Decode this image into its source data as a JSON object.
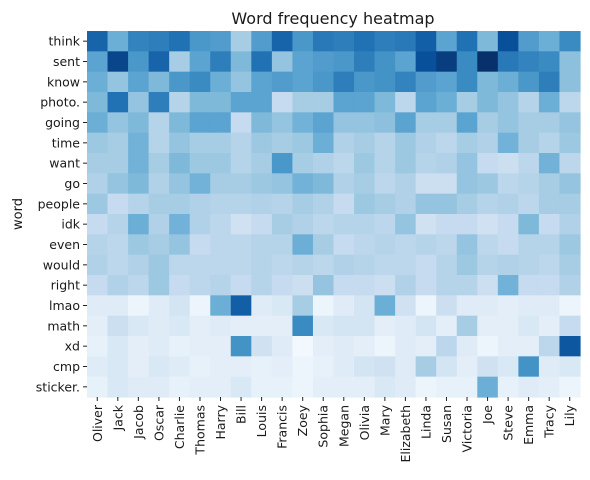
{
  "chart_data": {
    "type": "heatmap",
    "title": "Word frequency heatmap",
    "xlabel": "",
    "ylabel": "word",
    "grid": false,
    "legend": "none",
    "colormap": "Blues",
    "color_low": "#f7fbff",
    "color_high": "#08306b",
    "x": [
      "Oliver",
      "Jack",
      "Jacob",
      "Oscar",
      "Charlie",
      "Thomas",
      "Harry",
      "Bill",
      "Louis",
      "Francis",
      "Zoey",
      "Sophia",
      "Megan",
      "Olivia",
      "Mary",
      "Elizabeth",
      "Linda",
      "Susan",
      "Victoria",
      "Joe",
      "Steve",
      "Emma",
      "Tracy",
      "Lily"
    ],
    "y": [
      "think",
      "sent",
      "know",
      "photo.",
      "going",
      "time",
      "want",
      "go",
      "people",
      "idk",
      "even",
      "would",
      "right",
      "lmao",
      "math",
      "xd",
      "cmp",
      "sticker."
    ],
    "values": [
      [
        0.8,
        0.5,
        0.68,
        0.7,
        0.75,
        0.6,
        0.58,
        0.35,
        0.58,
        0.8,
        0.6,
        0.72,
        0.7,
        0.75,
        0.7,
        0.72,
        0.82,
        0.55,
        0.75,
        0.45,
        0.88,
        0.58,
        0.5,
        0.65
      ],
      [
        0.55,
        0.92,
        0.6,
        0.8,
        0.35,
        0.55,
        0.7,
        0.45,
        0.75,
        0.4,
        0.55,
        0.58,
        0.6,
        0.7,
        0.62,
        0.55,
        0.88,
        0.95,
        0.65,
        1.0,
        0.72,
        0.68,
        0.65,
        0.42
      ],
      [
        0.5,
        0.4,
        0.55,
        0.45,
        0.6,
        0.65,
        0.5,
        0.4,
        0.55,
        0.58,
        0.55,
        0.6,
        0.7,
        0.6,
        0.62,
        0.68,
        0.58,
        0.55,
        0.65,
        0.45,
        0.5,
        0.6,
        0.7,
        0.42
      ],
      [
        0.45,
        0.75,
        0.4,
        0.7,
        0.3,
        0.45,
        0.45,
        0.55,
        0.55,
        0.25,
        0.35,
        0.35,
        0.55,
        0.55,
        0.45,
        0.28,
        0.55,
        0.5,
        0.35,
        0.45,
        0.4,
        0.3,
        0.5,
        0.28
      ],
      [
        0.5,
        0.4,
        0.45,
        0.3,
        0.45,
        0.55,
        0.55,
        0.25,
        0.45,
        0.4,
        0.48,
        0.55,
        0.4,
        0.4,
        0.42,
        0.55,
        0.35,
        0.35,
        0.55,
        0.35,
        0.4,
        0.35,
        0.35,
        0.4
      ],
      [
        0.38,
        0.35,
        0.48,
        0.3,
        0.4,
        0.35,
        0.35,
        0.3,
        0.38,
        0.35,
        0.38,
        0.5,
        0.32,
        0.35,
        0.3,
        0.38,
        0.32,
        0.28,
        0.35,
        0.32,
        0.48,
        0.35,
        0.3,
        0.38
      ],
      [
        0.35,
        0.35,
        0.48,
        0.35,
        0.45,
        0.38,
        0.38,
        0.3,
        0.35,
        0.6,
        0.35,
        0.32,
        0.28,
        0.38,
        0.3,
        0.38,
        0.3,
        0.32,
        0.4,
        0.25,
        0.22,
        0.28,
        0.48,
        0.28
      ],
      [
        0.32,
        0.4,
        0.45,
        0.32,
        0.4,
        0.48,
        0.35,
        0.35,
        0.38,
        0.4,
        0.48,
        0.45,
        0.32,
        0.35,
        0.28,
        0.32,
        0.22,
        0.22,
        0.4,
        0.38,
        0.28,
        0.3,
        0.35,
        0.4
      ],
      [
        0.38,
        0.25,
        0.3,
        0.35,
        0.35,
        0.32,
        0.3,
        0.3,
        0.32,
        0.3,
        0.35,
        0.32,
        0.25,
        0.38,
        0.35,
        0.32,
        0.4,
        0.4,
        0.35,
        0.3,
        0.32,
        0.28,
        0.35,
        0.35
      ],
      [
        0.25,
        0.3,
        0.5,
        0.32,
        0.48,
        0.32,
        0.28,
        0.2,
        0.25,
        0.35,
        0.32,
        0.28,
        0.3,
        0.3,
        0.28,
        0.4,
        0.2,
        0.25,
        0.25,
        0.2,
        0.25,
        0.45,
        0.25,
        0.32
      ],
      [
        0.3,
        0.28,
        0.38,
        0.35,
        0.4,
        0.25,
        0.28,
        0.28,
        0.3,
        0.3,
        0.5,
        0.35,
        0.25,
        0.28,
        0.3,
        0.28,
        0.3,
        0.28,
        0.4,
        0.28,
        0.25,
        0.3,
        0.3,
        0.38
      ],
      [
        0.32,
        0.28,
        0.32,
        0.38,
        0.28,
        0.28,
        0.28,
        0.28,
        0.3,
        0.28,
        0.3,
        0.28,
        0.32,
        0.3,
        0.28,
        0.28,
        0.25,
        0.3,
        0.38,
        0.3,
        0.32,
        0.3,
        0.28,
        0.35
      ],
      [
        0.25,
        0.32,
        0.28,
        0.38,
        0.25,
        0.28,
        0.3,
        0.25,
        0.3,
        0.25,
        0.22,
        0.4,
        0.25,
        0.25,
        0.22,
        0.32,
        0.25,
        0.3,
        0.3,
        0.22,
        0.48,
        0.25,
        0.25,
        0.32
      ],
      [
        0.12,
        0.12,
        0.05,
        0.12,
        0.18,
        0.05,
        0.5,
        0.82,
        0.12,
        0.15,
        0.35,
        0.05,
        0.12,
        0.18,
        0.5,
        0.2,
        0.05,
        0.22,
        0.12,
        0.12,
        0.1,
        0.12,
        0.12,
        0.05
      ],
      [
        0.1,
        0.22,
        0.15,
        0.12,
        0.15,
        0.1,
        0.12,
        0.1,
        0.1,
        0.1,
        0.65,
        0.15,
        0.18,
        0.18,
        0.1,
        0.12,
        0.18,
        0.1,
        0.35,
        0.1,
        0.1,
        0.15,
        0.1,
        0.25
      ],
      [
        0.08,
        0.15,
        0.1,
        0.12,
        0.08,
        0.1,
        0.1,
        0.62,
        0.2,
        0.12,
        0.02,
        0.1,
        0.12,
        0.1,
        0.05,
        0.12,
        0.1,
        0.28,
        0.12,
        0.05,
        0.1,
        0.1,
        0.28,
        0.85
      ],
      [
        0.12,
        0.15,
        0.1,
        0.15,
        0.12,
        0.08,
        0.1,
        0.1,
        0.08,
        0.1,
        0.05,
        0.08,
        0.12,
        0.18,
        0.2,
        0.12,
        0.35,
        0.18,
        0.1,
        0.2,
        0.15,
        0.62,
        0.12,
        0.15
      ],
      [
        0.08,
        0.15,
        0.12,
        0.12,
        0.08,
        0.1,
        0.1,
        0.15,
        0.08,
        0.08,
        0.05,
        0.1,
        0.1,
        0.1,
        0.15,
        0.12,
        0.05,
        0.08,
        0.08,
        0.5,
        0.08,
        0.12,
        0.1,
        0.05
      ]
    ]
  }
}
